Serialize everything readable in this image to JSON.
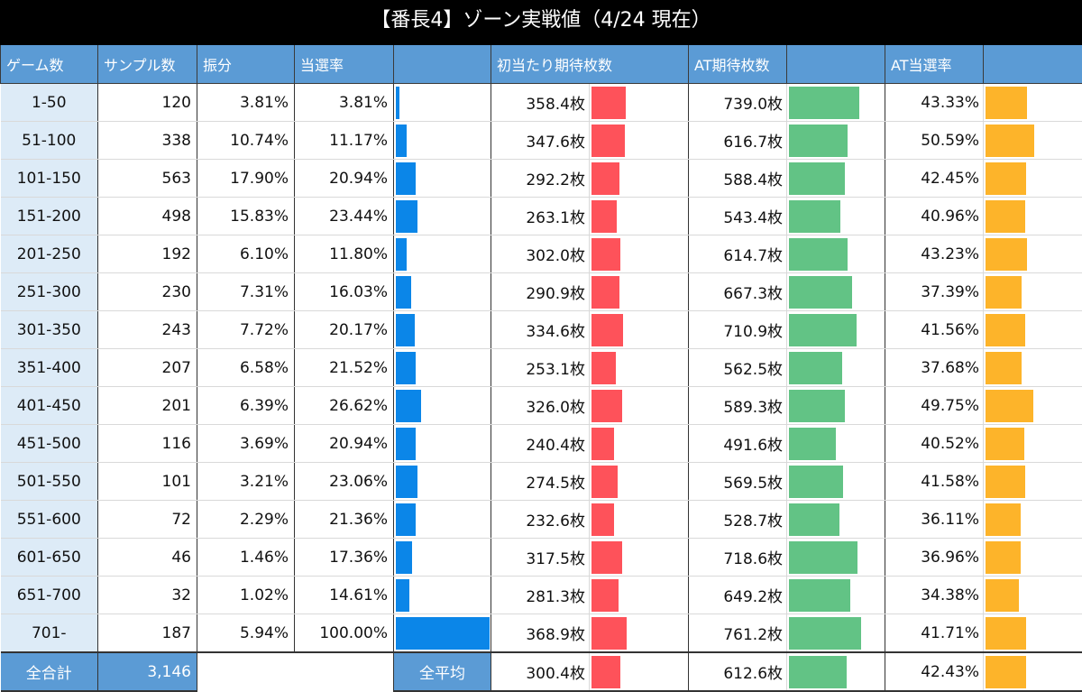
{
  "title": "【番長4】ゾーン実戦値（4/24 現在）",
  "headers": {
    "zone": "ゲーム数",
    "samples": "サンプル数",
    "distribution": "振分",
    "hit_rate": "当選率",
    "hit_rate_bar": "",
    "first_hit_coins": "初当たり期待枚数",
    "at_coins": "AT期待枚数",
    "at_coins_bar": "",
    "at_rate": "AT当選率",
    "at_rate_bar": ""
  },
  "rows": [
    {
      "zone": "1-50",
      "samples": "120",
      "dist": "3.81%",
      "hit": "3.81%",
      "first": "358.4枚",
      "at": "739.0枚",
      "atr": "43.33%"
    },
    {
      "zone": "51-100",
      "samples": "338",
      "dist": "10.74%",
      "hit": "11.17%",
      "first": "347.6枚",
      "at": "616.7枚",
      "atr": "50.59%"
    },
    {
      "zone": "101-150",
      "samples": "563",
      "dist": "17.90%",
      "hit": "20.94%",
      "first": "292.2枚",
      "at": "588.4枚",
      "atr": "42.45%"
    },
    {
      "zone": "151-200",
      "samples": "498",
      "dist": "15.83%",
      "hit": "23.44%",
      "first": "263.1枚",
      "at": "543.4枚",
      "atr": "40.96%"
    },
    {
      "zone": "201-250",
      "samples": "192",
      "dist": "6.10%",
      "hit": "11.80%",
      "first": "302.0枚",
      "at": "614.7枚",
      "atr": "43.23%"
    },
    {
      "zone": "251-300",
      "samples": "230",
      "dist": "7.31%",
      "hit": "16.03%",
      "first": "290.9枚",
      "at": "667.3枚",
      "atr": "37.39%"
    },
    {
      "zone": "301-350",
      "samples": "243",
      "dist": "7.72%",
      "hit": "20.17%",
      "first": "334.6枚",
      "at": "710.9枚",
      "atr": "41.56%"
    },
    {
      "zone": "351-400",
      "samples": "207",
      "dist": "6.58%",
      "hit": "21.52%",
      "first": "253.1枚",
      "at": "562.5枚",
      "atr": "37.68%"
    },
    {
      "zone": "401-450",
      "samples": "201",
      "dist": "6.39%",
      "hit": "26.62%",
      "first": "326.0枚",
      "at": "589.3枚",
      "atr": "49.75%"
    },
    {
      "zone": "451-500",
      "samples": "116",
      "dist": "3.69%",
      "hit": "20.94%",
      "first": "240.4枚",
      "at": "491.6枚",
      "atr": "40.52%"
    },
    {
      "zone": "501-550",
      "samples": "101",
      "dist": "3.21%",
      "hit": "23.06%",
      "first": "274.5枚",
      "at": "569.5枚",
      "atr": "41.58%"
    },
    {
      "zone": "551-600",
      "samples": "72",
      "dist": "2.29%",
      "hit": "21.36%",
      "first": "232.6枚",
      "at": "528.7枚",
      "atr": "36.11%"
    },
    {
      "zone": "601-650",
      "samples": "46",
      "dist": "1.46%",
      "hit": "17.36%",
      "first": "317.5枚",
      "at": "718.6枚",
      "atr": "36.96%"
    },
    {
      "zone": "651-700",
      "samples": "32",
      "dist": "1.02%",
      "hit": "14.61%",
      "first": "281.3枚",
      "at": "649.2枚",
      "atr": "34.38%"
    },
    {
      "zone": "701-",
      "samples": "187",
      "dist": "5.94%",
      "hit": "100.00%",
      "first": "368.9枚",
      "at": "761.2枚",
      "atr": "41.71%"
    }
  ],
  "footer": {
    "total_label": "全合計",
    "total_samples": "3,146",
    "avg_label": "全平均",
    "avg_first": "300.4枚",
    "avg_at": "612.6枚",
    "avg_atr": "42.43%"
  },
  "colors": {
    "header_bg": "#5b9bd5",
    "zone_bg": "#ddebf7",
    "hit_rate_bar": "#0b86e8",
    "first_hit_bar": "#fe525a",
    "at_coins_bar": "#62c385",
    "at_rate_bar": "#fdb42a"
  },
  "chart_data": {
    "type": "table",
    "title": "【番長4】ゾーン実戦値（4/24 現在）",
    "categories": [
      "1-50",
      "51-100",
      "101-150",
      "151-200",
      "201-250",
      "251-300",
      "301-350",
      "351-400",
      "401-450",
      "451-500",
      "501-550",
      "551-600",
      "601-650",
      "651-700",
      "701-"
    ],
    "series": [
      {
        "name": "サンプル数",
        "values": [
          120,
          338,
          563,
          498,
          192,
          230,
          243,
          207,
          201,
          116,
          101,
          72,
          46,
          32,
          187
        ]
      },
      {
        "name": "振分(%)",
        "values": [
          3.81,
          10.74,
          17.9,
          15.83,
          6.1,
          7.31,
          7.72,
          6.58,
          6.39,
          3.69,
          3.21,
          2.29,
          1.46,
          1.02,
          5.94
        ]
      },
      {
        "name": "当選率(%)",
        "values": [
          3.81,
          11.17,
          20.94,
          23.44,
          11.8,
          16.03,
          20.17,
          21.52,
          26.62,
          20.94,
          23.06,
          21.36,
          17.36,
          14.61,
          100.0
        ]
      },
      {
        "name": "初当たり期待枚数(枚)",
        "values": [
          358.4,
          347.6,
          292.2,
          263.1,
          302.0,
          290.9,
          334.6,
          253.1,
          326.0,
          240.4,
          274.5,
          232.6,
          317.5,
          281.3,
          368.9
        ]
      },
      {
        "name": "AT期待枚数(枚)",
        "values": [
          739.0,
          616.7,
          588.4,
          543.4,
          614.7,
          667.3,
          710.9,
          562.5,
          589.3,
          491.6,
          569.5,
          528.7,
          718.6,
          649.2,
          761.2
        ]
      },
      {
        "name": "AT当選率(%)",
        "values": [
          43.33,
          50.59,
          42.45,
          40.96,
          43.23,
          37.39,
          41.56,
          37.68,
          49.75,
          40.52,
          41.58,
          36.11,
          36.96,
          34.38,
          41.71
        ]
      }
    ],
    "totals": {
      "サンプル数": 3146,
      "初当たり期待枚数": 300.4,
      "AT期待枚数": 612.6,
      "AT当選率": 42.43
    }
  }
}
